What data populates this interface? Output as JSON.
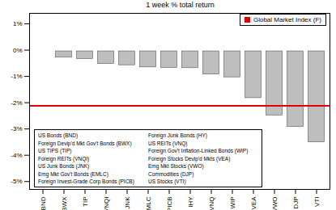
{
  "chart_data": {
    "type": "bar",
    "title": "1 week % total return",
    "categories": [
      "BND",
      "BWX",
      "TIP",
      "VNQI",
      "JNK",
      "MLC",
      "PICB",
      "IHY",
      "VNQ",
      "WIP",
      "VEA",
      "VWO",
      "DJP",
      "VTI"
    ],
    "values": [
      0.02,
      -0.33,
      -0.38,
      -0.57,
      -0.62,
      -0.7,
      -0.72,
      -0.73,
      -0.97,
      -1.08,
      -1.87,
      -2.53,
      -2.97,
      -3.55
    ],
    "color": "#bebebe",
    "series": [
      {
        "name": "Global Market Index (F)",
        "type": "line",
        "color": "#e00000",
        "values": [
          -2.13,
          -2.13,
          -2.13,
          -2.13,
          -2.13,
          -2.13,
          -2.13,
          -2.13,
          -2.13,
          -2.13,
          -2.13,
          -2.13,
          -2.13,
          -2.13
        ]
      }
    ],
    "legend": "top-right",
    "ylim": [
      -5.3,
      1.4
    ],
    "yticks": [
      {
        "value": -5,
        "label": "-5%"
      },
      {
        "value": -4,
        "label": "-4%"
      },
      {
        "value": -3,
        "label": "-3%"
      },
      {
        "value": -2,
        "label": "-2%"
      },
      {
        "value": -1,
        "label": "-1%"
      },
      {
        "value": 0,
        "label": "0%"
      },
      {
        "value": 1,
        "label": "1%"
      }
    ],
    "grid": false,
    "annotations": [
      "US Bonds (BND)",
      "Foreign Devlp'd Mkt Gov't Bonds (BWX)",
      "US TIPS (TIP)",
      "Foreign REITs (VNQI)",
      "US Junk Bonds (JNK)",
      "Emg Mkt Gov't Bonds (EMLC)",
      "Foreign Invest-Grade Corp Bonds (PICB)",
      "Foreign Junk Bonds (HY)",
      "US REITs (VNQ)",
      "Foreign Gov't Inflation-Linked Bonds (WIP)",
      "Foreign Stocks Devlp'd Mkts (VEA)",
      "Emg Mkt Stocks (VWO)",
      "Commodities (DJP)",
      "US Stocks (VTI)"
    ]
  }
}
